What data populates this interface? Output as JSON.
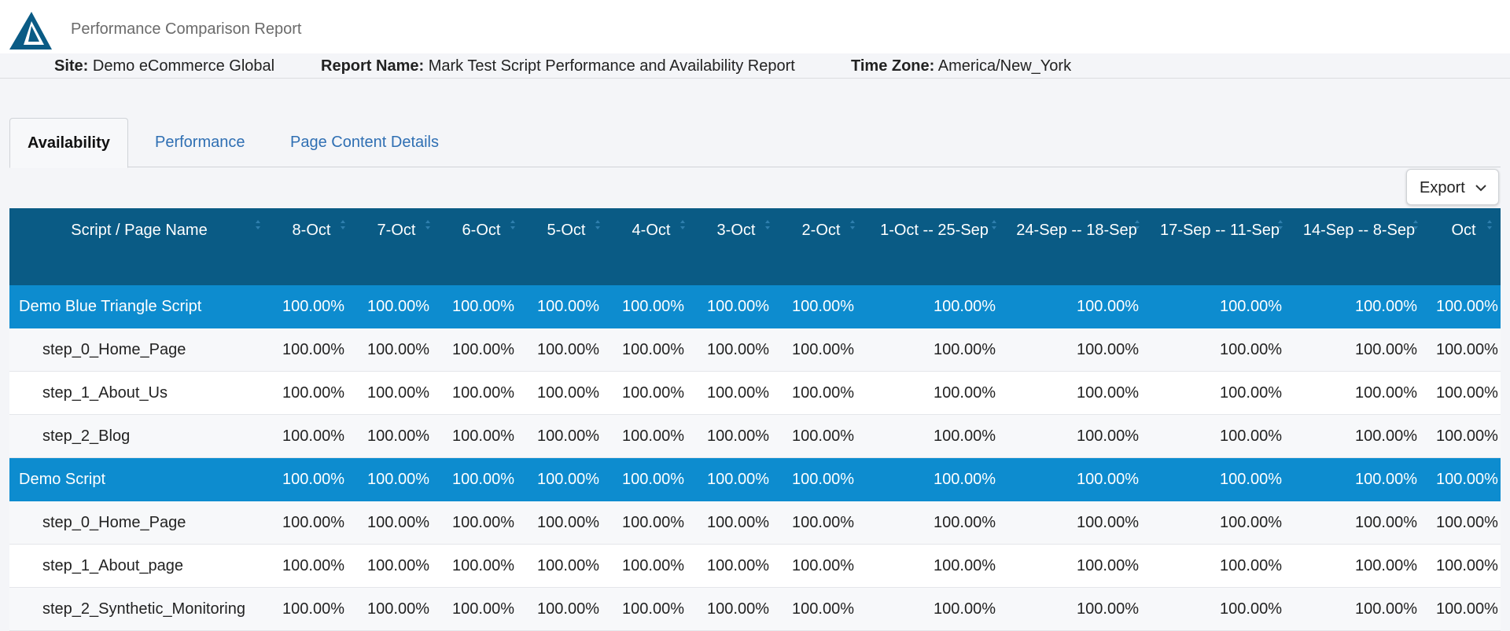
{
  "header": {
    "app_title": "Performance Comparison Report",
    "site_label": "Site:",
    "site_value": "Demo eCommerce Global",
    "report_label": "Report Name:",
    "report_value": "Mark Test Script Performance and Availability Report",
    "tz_label": "Time Zone:",
    "tz_value": "America/New_York"
  },
  "tabs": [
    {
      "label": "Availability",
      "active": true
    },
    {
      "label": "Performance",
      "active": false
    },
    {
      "label": "Page Content Details",
      "active": false
    }
  ],
  "export_label": "Export",
  "table": {
    "columns": [
      "Script / Page Name",
      "8-Oct",
      "7-Oct",
      "6-Oct",
      "5-Oct",
      "4-Oct",
      "3-Oct",
      "2-Oct",
      "1-Oct -- 25-Sep",
      "24-Sep -- 18-Sep",
      "17-Sep -- 11-Sep",
      "14-Sep -- 8-Sep",
      "Oct"
    ],
    "rows": [
      {
        "type": "group",
        "name": "Demo Blue Triangle Script",
        "values": [
          "100.00%",
          "100.00%",
          "100.00%",
          "100.00%",
          "100.00%",
          "100.00%",
          "100.00%",
          "100.00%",
          "100.00%",
          "100.00%",
          "100.00%",
          "100.00%"
        ]
      },
      {
        "type": "step",
        "name": "step_0_Home_Page",
        "values": [
          "100.00%",
          "100.00%",
          "100.00%",
          "100.00%",
          "100.00%",
          "100.00%",
          "100.00%",
          "100.00%",
          "100.00%",
          "100.00%",
          "100.00%",
          "100.00%"
        ]
      },
      {
        "type": "step",
        "name": "step_1_About_Us",
        "values": [
          "100.00%",
          "100.00%",
          "100.00%",
          "100.00%",
          "100.00%",
          "100.00%",
          "100.00%",
          "100.00%",
          "100.00%",
          "100.00%",
          "100.00%",
          "100.00%"
        ]
      },
      {
        "type": "step",
        "name": "step_2_Blog",
        "values": [
          "100.00%",
          "100.00%",
          "100.00%",
          "100.00%",
          "100.00%",
          "100.00%",
          "100.00%",
          "100.00%",
          "100.00%",
          "100.00%",
          "100.00%",
          "100.00%"
        ]
      },
      {
        "type": "group",
        "name": "Demo Script",
        "values": [
          "100.00%",
          "100.00%",
          "100.00%",
          "100.00%",
          "100.00%",
          "100.00%",
          "100.00%",
          "100.00%",
          "100.00%",
          "100.00%",
          "100.00%",
          "100.00%"
        ]
      },
      {
        "type": "step",
        "name": "step_0_Home_Page",
        "values": [
          "100.00%",
          "100.00%",
          "100.00%",
          "100.00%",
          "100.00%",
          "100.00%",
          "100.00%",
          "100.00%",
          "100.00%",
          "100.00%",
          "100.00%",
          "100.00%"
        ]
      },
      {
        "type": "step",
        "name": "step_1_About_page",
        "values": [
          "100.00%",
          "100.00%",
          "100.00%",
          "100.00%",
          "100.00%",
          "100.00%",
          "100.00%",
          "100.00%",
          "100.00%",
          "100.00%",
          "100.00%",
          "100.00%"
        ]
      },
      {
        "type": "step",
        "name": "step_2_Synthetic_Monitoring",
        "values": [
          "100.00%",
          "100.00%",
          "100.00%",
          "100.00%",
          "100.00%",
          "100.00%",
          "100.00%",
          "100.00%",
          "100.00%",
          "100.00%",
          "100.00%",
          "100.00%"
        ]
      }
    ]
  },
  "colors": {
    "header_bg": "#0a5b85",
    "group_row_bg": "#0d8ccf",
    "link": "#2f6fb3"
  },
  "icons": {
    "logo": "triangle-logo-icon",
    "sort": "sort-icon",
    "export_chevron": "chevron-down-icon"
  }
}
